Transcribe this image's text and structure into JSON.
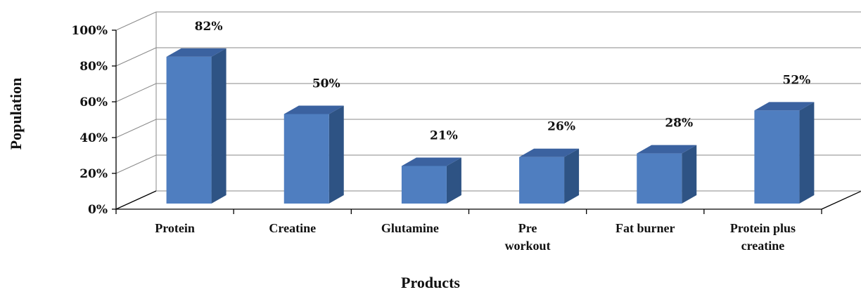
{
  "chart_data": {
    "type": "bar",
    "title": "",
    "xlabel": "Products",
    "ylabel": "Population",
    "categories": [
      "Protein",
      "Creatine",
      "Glutamine",
      "Pre workout",
      "Fat burner",
      "Protein plus creatine"
    ],
    "category_lines": [
      [
        "Protein"
      ],
      [
        "Creatine"
      ],
      [
        "Glutamine"
      ],
      [
        "Pre",
        "workout"
      ],
      [
        "Fat burner"
      ],
      [
        "Protein plus",
        "creatine"
      ]
    ],
    "values": [
      82,
      50,
      21,
      26,
      28,
      52
    ],
    "data_labels": [
      "82%",
      "50%",
      "21%",
      "26%",
      "28%",
      "52%"
    ],
    "y_ticks": [
      "0%",
      "20%",
      "40%",
      "60%",
      "80%",
      "100%"
    ],
    "ylim": [
      0,
      100
    ],
    "grid": true,
    "style": "3d-column",
    "colors": {
      "bar_front": "#4F7EC0",
      "bar_side": "#2E5384",
      "bar_top": "#3B62A0",
      "gridline": "#8a8a8a"
    }
  }
}
